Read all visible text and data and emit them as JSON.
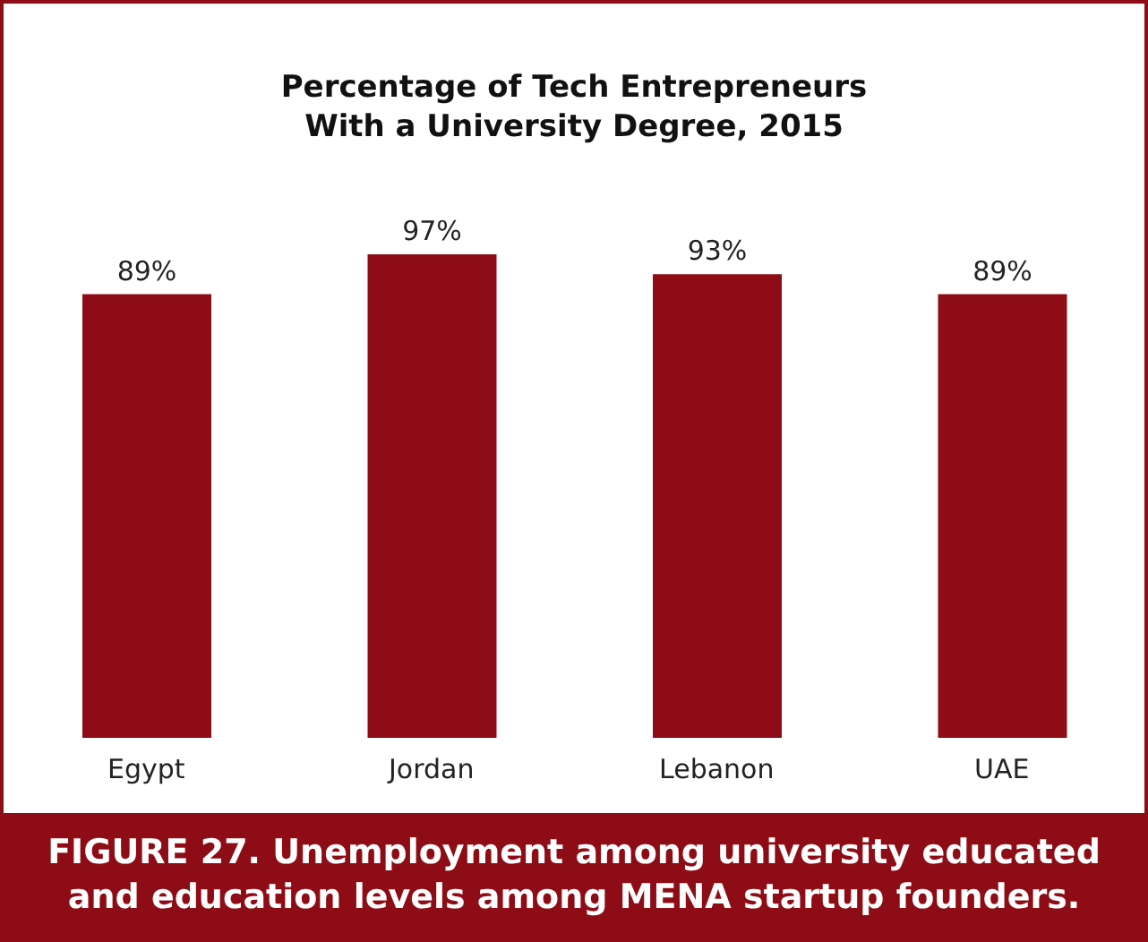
{
  "chart_data": {
    "type": "bar",
    "title": "Percentage of  Tech Entrepreneurs\nWith a University Degree, 2015",
    "categories": [
      "Egypt",
      "Jordan",
      "Lebanon",
      "UAE"
    ],
    "values": [
      89,
      97,
      93,
      89
    ],
    "colors": [
      "#8e0c15",
      "#8e0c15",
      "#8e0c15",
      "#8e0c15"
    ],
    "data_labels": true,
    "value_labels": [
      "89%",
      "97%",
      "93%",
      "89%"
    ],
    "tick_labels": "x",
    "grid": false,
    "annotations": [
      "FIGURE 27. Unemployment among university educated and education levels among MENA startup founders."
    ]
  }
}
